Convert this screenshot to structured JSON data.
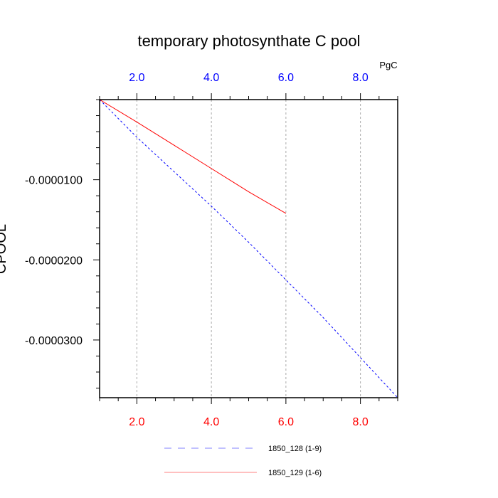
{
  "chart_data": {
    "type": "line",
    "title": "temporary photosynthate C pool",
    "ylabel": "CPOOL",
    "top_axis_unit": "PgC",
    "xlim": [
      1,
      9
    ],
    "ylim": [
      -3.72e-05,
      0
    ],
    "x_ticks": [
      "2.0",
      "4.0",
      "6.0",
      "8.0"
    ],
    "x_tick_values": [
      2,
      4,
      6,
      8
    ],
    "y_ticks": [
      "-0.0000100",
      "-0.0000200",
      "-0.0000300"
    ],
    "y_tick_values": [
      -1e-05,
      -2e-05,
      -3e-05
    ],
    "grid": "vertical-dashed",
    "legend_placement": "bottom",
    "series": [
      {
        "name": "1850_128 (1-9)",
        "color": "#0000ff",
        "style": "dashed",
        "x": [
          1,
          2,
          3,
          4,
          5,
          6,
          7,
          8,
          9
        ],
        "values": [
          0,
          -4.7e-06,
          -9e-06,
          -1.33e-05,
          -1.78e-05,
          -2.25e-05,
          -2.72e-05,
          -3.22e-05,
          -3.72e-05
        ]
      },
      {
        "name": "1850_129 (1-6)",
        "color": "#ff0000",
        "style": "solid",
        "x": [
          1,
          2,
          3,
          4,
          5,
          6
        ],
        "values": [
          0,
          -2.8e-06,
          -5.7e-06,
          -8.6e-06,
          -1.15e-05,
          -1.42e-05
        ]
      }
    ],
    "colors": {
      "bottom_ticks": "#ff0000",
      "top_ticks": "#0000ff",
      "grid": "#aaaaaa"
    }
  }
}
